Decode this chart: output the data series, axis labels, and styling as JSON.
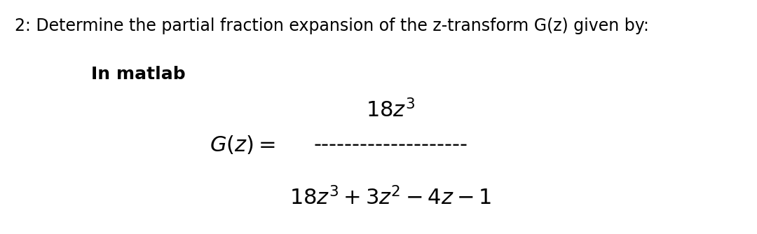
{
  "title_text": "2: Determine the partial fraction expansion of the z-transform G(z) given by:",
  "subtitle_text": "In matlab",
  "numerator_text": "$18z^3$",
  "gz_label": "$G(z)=$",
  "dashes": "--------------------",
  "denominator_text": "$18z^3+3z^2-4z-1$",
  "bg_color": "#ffffff",
  "text_color": "#000000",
  "title_fontsize": 17,
  "subtitle_fontsize": 18,
  "formula_fontsize": 22,
  "gz_fontsize": 22,
  "denom_fontsize": 22,
  "fig_width": 10.8,
  "fig_height": 3.34
}
